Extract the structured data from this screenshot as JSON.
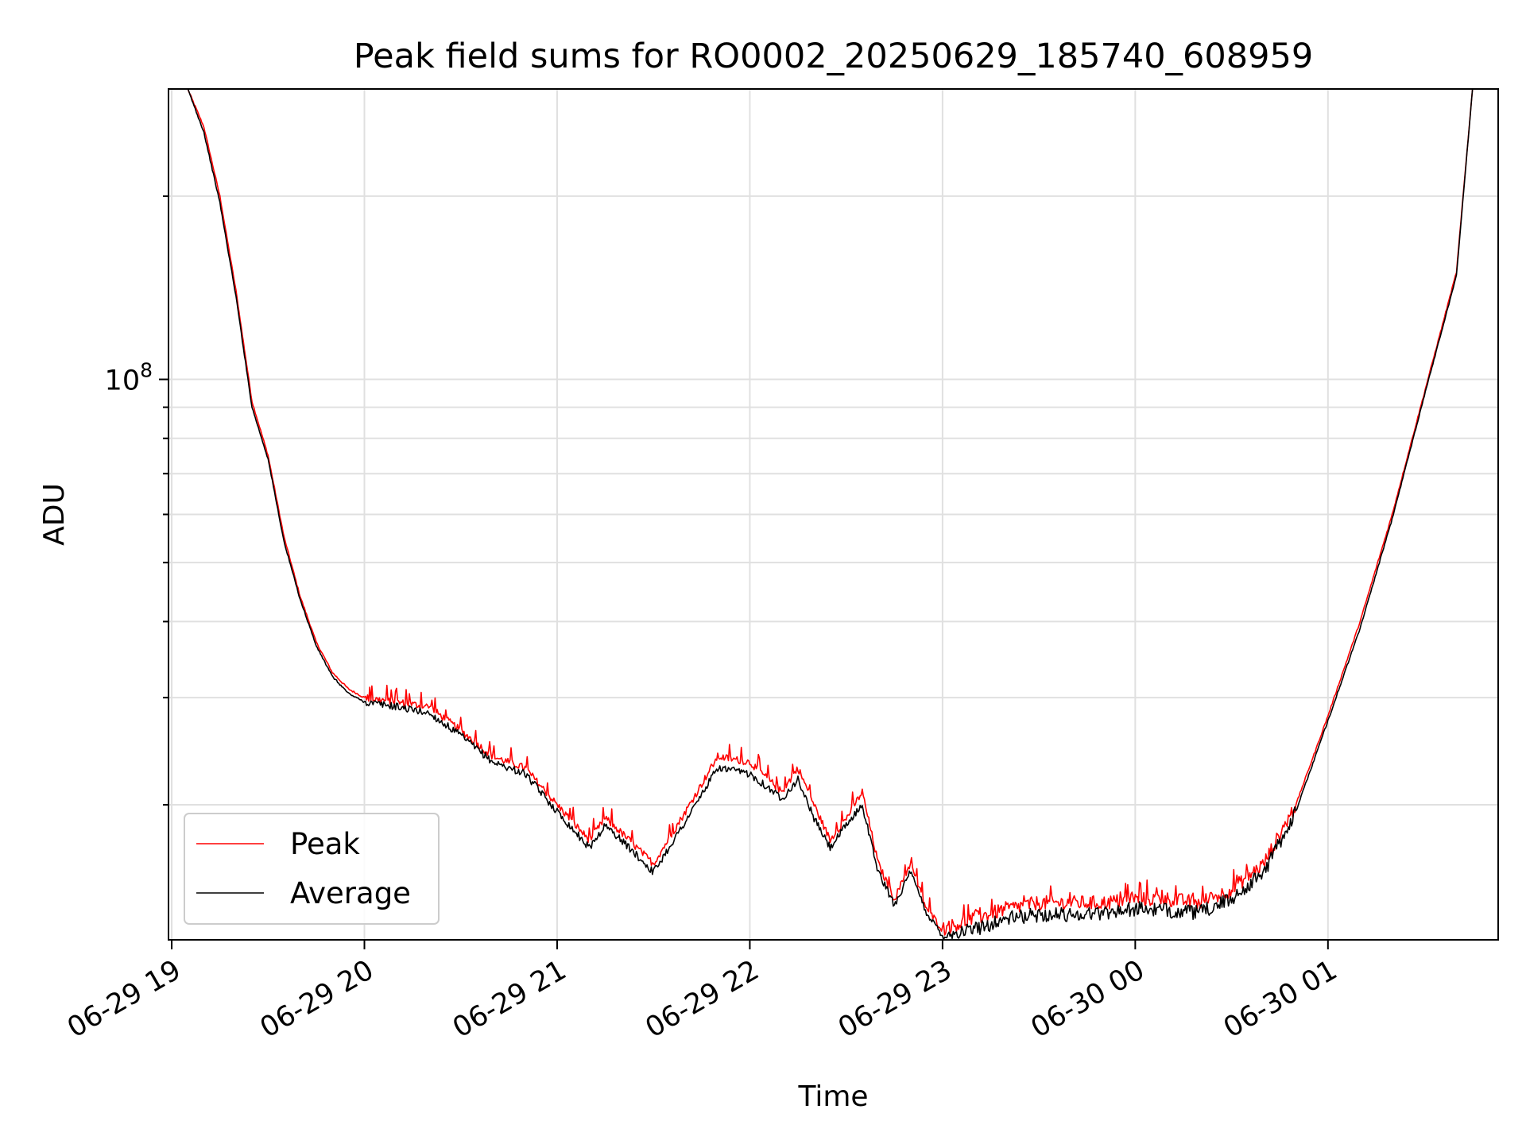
{
  "chart_data": {
    "type": "line",
    "title": "Peak field sums for RO0002_20250629_185740_608959",
    "xlabel": "Time",
    "ylabel": "ADU",
    "yscale": "log",
    "grid": true,
    "legend_position": "lower-left",
    "x_tick_labels": [
      "06-29 19",
      "06-29 20",
      "06-29 21",
      "06-29 22",
      "06-29 23",
      "06-30 00",
      "06-30 01"
    ],
    "xlim": [
      "2025-06-29 18:59",
      "2025-06-30 01:53"
    ],
    "y_tick_major": [
      {
        "value": 100000000,
        "base": "10",
        "exp": "8"
      }
    ],
    "ylim": [
      12000000,
      300000000
    ],
    "x": [
      "19:05",
      "19:10",
      "19:15",
      "19:20",
      "19:25",
      "19:30",
      "19:35",
      "19:40",
      "19:45",
      "19:50",
      "19:55",
      "20:00",
      "20:10",
      "20:20",
      "20:30",
      "20:40",
      "20:50",
      "21:00",
      "21:10",
      "21:15",
      "21:20",
      "21:30",
      "21:40",
      "21:50",
      "22:00",
      "22:10",
      "22:15",
      "22:20",
      "22:25",
      "22:30",
      "22:35",
      "22:40",
      "22:45",
      "22:50",
      "22:55",
      "23:00",
      "23:10",
      "23:20",
      "23:30",
      "23:40",
      "23:50",
      "00:00",
      "00:10",
      "00:20",
      "00:30",
      "00:40",
      "00:50",
      "01:00",
      "01:10",
      "01:20",
      "01:30",
      "01:40",
      "01:45"
    ],
    "series": [
      {
        "name": "Peak",
        "color": "#ff0000",
        "values": [
          300000000,
          260000000,
          200000000,
          140000000,
          92000000,
          75000000,
          55000000,
          44000000,
          37000000,
          33000000,
          31000000,
          30000000,
          29500000,
          29000000,
          26500000,
          24000000,
          23000000,
          20000000,
          17500000,
          19000000,
          18000000,
          16000000,
          19500000,
          24000000,
          23500000,
          21000000,
          23000000,
          20000000,
          17500000,
          19000000,
          21000000,
          16000000,
          14000000,
          16000000,
          13500000,
          12500000,
          13000000,
          13500000,
          13800000,
          13800000,
          13800000,
          14000000,
          14000000,
          13800000,
          14500000,
          16000000,
          20000000,
          28000000,
          40000000,
          60000000,
          95000000,
          150000000,
          300000000
        ]
      },
      {
        "name": "Average",
        "color": "#000000",
        "values": [
          300000000,
          255000000,
          195000000,
          137000000,
          90000000,
          74000000,
          54000000,
          43500000,
          36500000,
          32500000,
          30500000,
          29500000,
          29000000,
          28300000,
          26000000,
          23500000,
          22500000,
          19500000,
          17000000,
          18500000,
          17500000,
          15500000,
          18800000,
          23000000,
          22500000,
          20500000,
          22000000,
          19000000,
          17000000,
          18500000,
          20000000,
          15500000,
          13700000,
          15500000,
          13300000,
          12200000,
          12500000,
          13000000,
          13200000,
          13200000,
          13300000,
          13500000,
          13400000,
          13300000,
          14000000,
          15500000,
          19500000,
          27500000,
          39000000,
          59000000,
          94000000,
          148000000,
          300000000
        ]
      }
    ]
  }
}
